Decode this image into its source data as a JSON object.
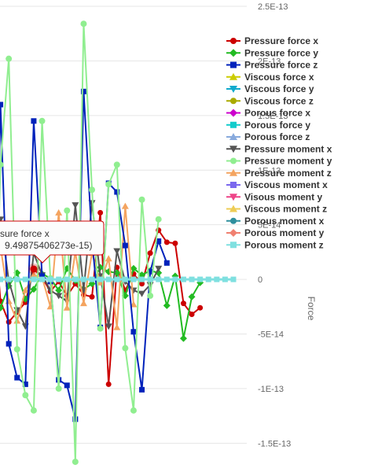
{
  "chart_data": {
    "type": "line",
    "ylabel": "Force",
    "ylim": [
      -1.8e-13,
      2.5e-13
    ],
    "y_ticks": [
      "2.5E-13",
      "2E-13",
      "1.5E-13",
      "1E-13",
      "5E-14",
      "0",
      "-5E-14",
      "-1E-13",
      "-1.5E-13"
    ],
    "y_tick_values": [
      2.5e-13,
      2e-13,
      1.5e-13,
      1e-13,
      5e-14,
      0,
      -5e-14,
      -1e-13,
      -1.5e-13
    ],
    "x_count": 30,
    "grid": true,
    "legend_position": "right",
    "series": [
      {
        "name": "Pressure force x",
        "color": "#cc0000",
        "marker": "circle",
        "values": [
          7.8e-14,
          -2e-14,
          -3.9e-14,
          -3e-14,
          -2.1e-14,
          9.5e-15,
          2e-15,
          -1.1e-14,
          -2e-15,
          -1.5e-14,
          -4e-15,
          -1.4e-14,
          -1.6e-14,
          6.1e-14,
          -9.6e-14,
          1.1e-14,
          -1e-14,
          5e-15,
          -4e-15,
          2.4e-14,
          4.5e-14,
          3.4e-14,
          3.3e-14,
          -2.2e-14,
          -3.2e-14,
          -2.6e-14
        ]
      },
      {
        "name": "Pressure force y",
        "color": "#22bb22",
        "marker": "diamond",
        "values": [
          -1.6e-14,
          -2.6e-14,
          -6e-15,
          6e-15,
          -1.8e-14,
          -9e-15,
          5e-15,
          1e-15,
          -1e-14,
          1e-14,
          -1e-15,
          -9e-15,
          -4e-15,
          1.1e-14,
          7e-15,
          6e-15,
          -1.5e-14,
          1e-14,
          4e-15,
          8e-15,
          6e-15,
          -2.4e-14,
          3e-15,
          -5.4e-14,
          -1.6e-14,
          -3e-15
        ]
      },
      {
        "name": "Pressure force z",
        "color": "#0022bb",
        "marker": "square",
        "values": [
          -1.8e-13,
          1.6e-13,
          -5.9e-14,
          -9e-14,
          -9.6e-14,
          1.45e-13,
          3e-15,
          -2e-15,
          -9.2e-14,
          -9.7e-14,
          -1.28e-13,
          1.72e-13,
          3.6e-14,
          -4.4e-14,
          8.8e-14,
          8e-14,
          3.1e-14,
          -4.8e-14,
          -1.01e-13,
          7e-15,
          3.5e-14,
          1.5e-14
        ]
      },
      {
        "name": "Viscous force x",
        "color": "#cccc00",
        "marker": "triangle",
        "values": []
      },
      {
        "name": "Viscous force y",
        "color": "#11aacc",
        "marker": "triangle-down",
        "values": []
      },
      {
        "name": "Viscous force z",
        "color": "#aaaa00",
        "marker": "circle",
        "values": []
      },
      {
        "name": "Porous force x",
        "color": "#cc00cc",
        "marker": "diamond",
        "values": []
      },
      {
        "name": "Porous force y",
        "color": "#11cccc",
        "marker": "square",
        "values": []
      },
      {
        "name": "Porous force z",
        "color": "#88aadd",
        "marker": "triangle",
        "values": []
      },
      {
        "name": "Pressure moment x",
        "color": "#555555",
        "marker": "triangle-down",
        "values": [
          -1e-15,
          5.5e-14,
          -1e-15,
          -2.8e-14,
          -4.3e-14,
          2.4e-14,
          4e-15,
          -1e-14,
          -1.5e-14,
          -2e-14,
          6.8e-14,
          -1e-14,
          7e-14,
          3e-15,
          -4.3e-14,
          2.6e-14,
          -2e-15,
          -1e-14,
          -1.3e-14,
          -5e-15,
          1e-14
        ]
      },
      {
        "name": "Pressure moment y",
        "color": "#90ee90",
        "marker": "circle",
        "values": [
          -1.8e-13,
          1.05e-13,
          2.02e-13,
          -6.4e-14,
          -1.06e-13,
          -1.2e-13,
          1.45e-13,
          1e-15,
          -1e-13,
          6.3e-14,
          -1.67e-13,
          2.34e-13,
          8.2e-14,
          -4.5e-14,
          8.7e-14,
          1.05e-13,
          -6.3e-14,
          -1.2e-13,
          7.3e-14,
          -1.5e-14,
          5.5e-14
        ]
      },
      {
        "name": "Pressure moment z",
        "color": "#f4a460",
        "marker": "triangle",
        "values": [
          1.2e-14,
          3e-14,
          -2e-14,
          -3.8e-14,
          -1e-14,
          4e-15,
          2e-15,
          -2.5e-14,
          6.1e-14,
          -2.6e-14,
          2.5e-14,
          -2.2e-14,
          2.4e-14,
          -3e-15,
          1.9e-14,
          -4.4e-14,
          6.7e-14,
          -2.3e-14
        ]
      },
      {
        "name": "Viscous moment x",
        "color": "#7b68ee",
        "marker": "square",
        "values": []
      },
      {
        "name": "Visous moment y",
        "color": "#ee4488",
        "marker": "triangle-down",
        "values": []
      },
      {
        "name": "Viscous moment z",
        "color": "#eecc55",
        "marker": "triangle",
        "values": []
      },
      {
        "name": "Porous moment x",
        "color": "#2f8f9d",
        "marker": "circle",
        "values": []
      },
      {
        "name": "Porous moment y",
        "color": "#f08070",
        "marker": "diamond",
        "values": []
      },
      {
        "name": "Porous moment z",
        "color": "#7fe0e0",
        "marker": "square",
        "values": [
          0,
          0,
          0,
          0,
          0,
          0,
          0,
          0,
          0,
          0,
          0,
          0,
          0,
          0,
          0,
          0,
          0,
          0,
          0,
          0,
          0,
          0,
          0,
          0,
          0,
          0,
          0,
          0,
          0,
          0
        ]
      }
    ],
    "tooltip": {
      "title": "sure force x",
      "value_text": "9.49875406273e-15)",
      "series_index": 0,
      "point_index": 5
    }
  }
}
